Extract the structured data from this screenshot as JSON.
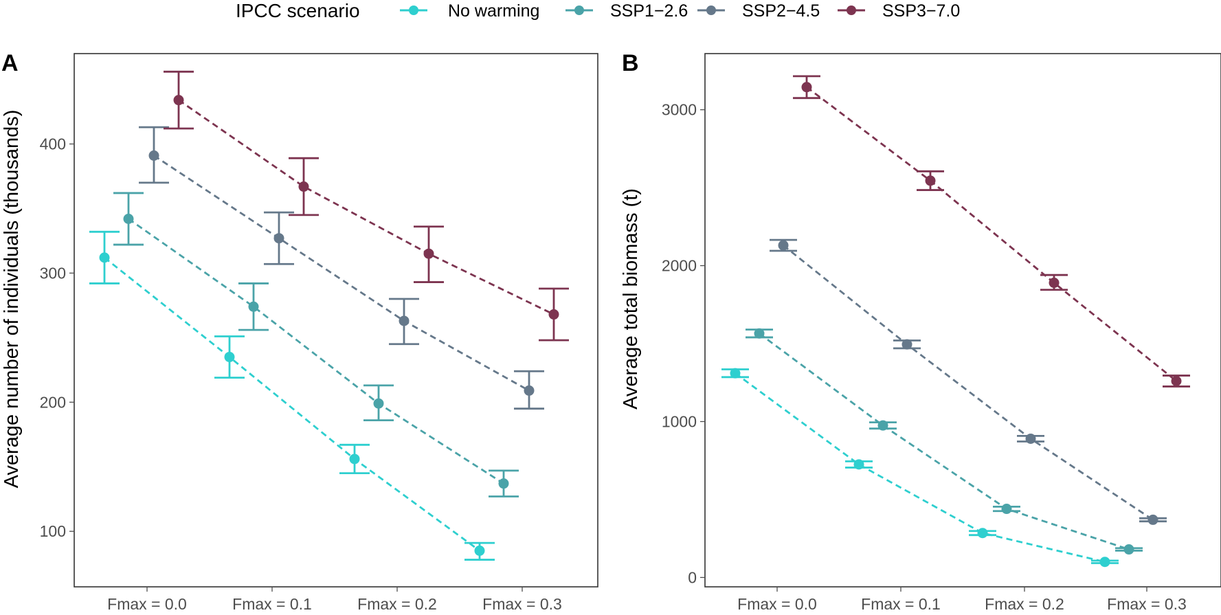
{
  "legend": {
    "title": "IPCC scenario",
    "entries": [
      {
        "label": "No warming",
        "color": "#2ecfcf"
      },
      {
        "label": "SSP1−2.6",
        "color": "#4aa3a8"
      },
      {
        "label": "SSP2−4.5",
        "color": "#65788a"
      },
      {
        "label": "SSP3−7.0",
        "color": "#7d3450"
      }
    ]
  },
  "chart_data": [
    {
      "panel": "A",
      "type": "scatter",
      "ylabel": "Average number of individuals (thousands)",
      "xlabel": "",
      "categories": [
        "Fmax = 0.0",
        "Fmax = 0.1",
        "Fmax = 0.2",
        "Fmax = 0.3"
      ],
      "ylim": [
        57,
        470
      ],
      "yticks": [
        100,
        200,
        300,
        400
      ],
      "series": [
        {
          "name": "No warming",
          "values": [
            312,
            235,
            156,
            85
          ],
          "lower": [
            292,
            219,
            145,
            78
          ],
          "upper": [
            332,
            251,
            167,
            91
          ]
        },
        {
          "name": "SSP1−2.6",
          "values": [
            342,
            274,
            199,
            137
          ],
          "lower": [
            322,
            256,
            186,
            127
          ],
          "upper": [
            362,
            292,
            213,
            147
          ]
        },
        {
          "name": "SSP2−4.5",
          "values": [
            391,
            327,
            263,
            209
          ],
          "lower": [
            370,
            307,
            245,
            195
          ],
          "upper": [
            413,
            347,
            280,
            224
          ]
        },
        {
          "name": "SSP3−7.0",
          "values": [
            434,
            367,
            315,
            268
          ],
          "lower": [
            412,
            345,
            293,
            248
          ],
          "upper": [
            456,
            389,
            336,
            288
          ]
        }
      ]
    },
    {
      "panel": "B",
      "type": "scatter",
      "ylabel": "Average total biomass (t)",
      "xlabel": "",
      "categories": [
        "Fmax = 0.0",
        "Fmax = 0.1",
        "Fmax = 0.2",
        "Fmax = 0.3"
      ],
      "ylim": [
        -60,
        3360
      ],
      "yticks": [
        0,
        1000,
        2000,
        3000
      ],
      "series": [
        {
          "name": "No warming",
          "values": [
            1310,
            725,
            285,
            100
          ],
          "lower": [
            1285,
            705,
            272,
            92
          ],
          "upper": [
            1335,
            745,
            298,
            108
          ]
        },
        {
          "name": "SSP1−2.6",
          "values": [
            1565,
            975,
            440,
            180
          ],
          "lower": [
            1540,
            955,
            426,
            172
          ],
          "upper": [
            1590,
            995,
            454,
            188
          ]
        },
        {
          "name": "SSP2−4.5",
          "values": [
            2130,
            1495,
            890,
            370
          ],
          "lower": [
            2095,
            1470,
            872,
            360
          ],
          "upper": [
            2165,
            1520,
            908,
            380
          ]
        },
        {
          "name": "SSP3−7.0",
          "values": [
            3145,
            2545,
            1890,
            1260
          ],
          "lower": [
            3075,
            2485,
            1845,
            1225
          ],
          "upper": [
            3215,
            2605,
            1940,
            1295
          ]
        }
      ]
    }
  ]
}
